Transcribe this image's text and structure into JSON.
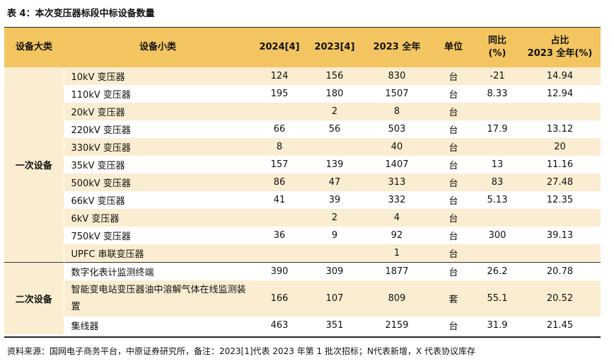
{
  "title": "表 4：本次变压器标段中标设备数量",
  "headers": {
    "category": "设备大类",
    "item": "设备小类",
    "y2024": "2024[4]",
    "y2023b": "2023[4]",
    "y2023full": "2023 全年",
    "unit": "单位",
    "yoy_line1": "同比",
    "yoy_line2": "(%)",
    "share_line1": "占比",
    "share_line2": "2023 全年(%)"
  },
  "groups": [
    {
      "category": "一次设备",
      "rows": [
        {
          "name": "10kV 变压器",
          "y2024": "124",
          "y2023b": "156",
          "full": "830",
          "unit": "台",
          "yoy": "-21",
          "share": "14.94"
        },
        {
          "name": "110kV 变压器",
          "y2024": "195",
          "y2023b": "180",
          "full": "1507",
          "unit": "台",
          "yoy": "8.33",
          "share": "12.94"
        },
        {
          "name": "20kV 变压器",
          "y2024": "",
          "y2023b": "2",
          "full": "8",
          "unit": "台",
          "yoy": "",
          "share": ""
        },
        {
          "name": "220kV 变压器",
          "y2024": "66",
          "y2023b": "56",
          "full": "503",
          "unit": "台",
          "yoy": "17.9",
          "share": "13.12"
        },
        {
          "name": "330kV 变压器",
          "y2024": "8",
          "y2023b": "",
          "full": "40",
          "unit": "台",
          "yoy": "",
          "share": "20"
        },
        {
          "name": "35kV 变压器",
          "y2024": "157",
          "y2023b": "139",
          "full": "1407",
          "unit": "台",
          "yoy": "13",
          "share": "11.16"
        },
        {
          "name": "500kV 变压器",
          "y2024": "86",
          "y2023b": "47",
          "full": "313",
          "unit": "台",
          "yoy": "83",
          "share": "27.48"
        },
        {
          "name": "66kV 变压器",
          "y2024": "41",
          "y2023b": "39",
          "full": "332",
          "unit": "台",
          "yoy": "5.13",
          "share": "12.35"
        },
        {
          "name": "6kV 变压器",
          "y2024": "",
          "y2023b": "2",
          "full": "4",
          "unit": "台",
          "yoy": "",
          "share": ""
        },
        {
          "name": "750kV 变压器",
          "y2024": "36",
          "y2023b": "9",
          "full": "92",
          "unit": "台",
          "yoy": "300",
          "share": "39.13"
        },
        {
          "name": "UPFC 串联变压器",
          "y2024": "",
          "y2023b": "",
          "full": "1",
          "unit": "台",
          "yoy": "",
          "share": ""
        }
      ]
    },
    {
      "category": "二次设备",
      "rows": [
        {
          "name": "数字化表计监测终端",
          "y2024": "390",
          "y2023b": "309",
          "full": "1877",
          "unit": "台",
          "yoy": "26.2",
          "share": "20.78"
        },
        {
          "name": "智能变电站变压器油中溶解气体在线监测装置",
          "y2024": "166",
          "y2023b": "107",
          "full": "809",
          "unit": "套",
          "yoy": "55.1",
          "share": "20.52"
        },
        {
          "name": "集线器",
          "y2024": "463",
          "y2023b": "351",
          "full": "2159",
          "unit": "台",
          "yoy": "31.9",
          "share": "21.45"
        }
      ]
    }
  ],
  "note": "资料来源：国网电子商务平台，中原证券研究所，备注：2023[1]代表 2023 年第 1 批次招标；N代表新增，X 代表协议库存"
}
